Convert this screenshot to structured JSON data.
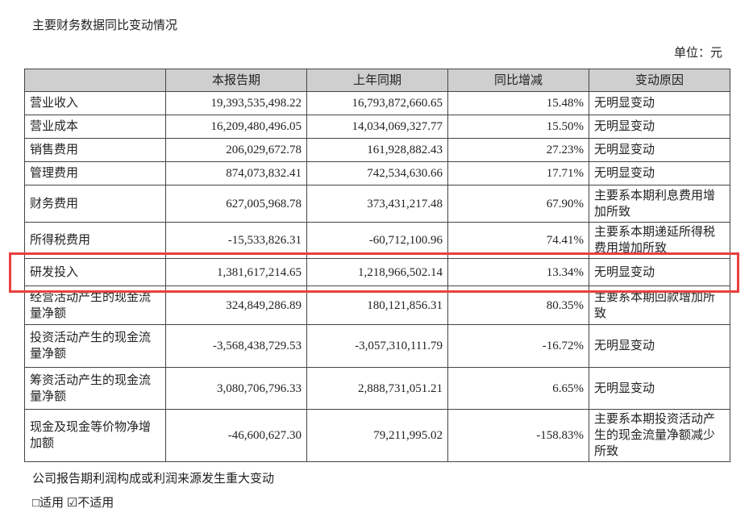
{
  "header": {
    "title": "主要财务数据同比变动情况",
    "unit": "单位：元"
  },
  "table": {
    "headers": [
      "本报告期",
      "上年同期",
      "同比增减",
      "变动原因"
    ],
    "rows": [
      [
        "营业收入",
        "19,393,535,498.22",
        "16,793,872,660.65",
        "15.48%",
        "无明显变动"
      ],
      [
        "营业成本",
        "16,209,480,496.05",
        "14,034,069,327.77",
        "15.50%",
        "无明显变动"
      ],
      [
        "销售费用",
        "206,029,672.78",
        "161,928,882.43",
        "27.23%",
        "无明显变动"
      ],
      [
        "管理费用",
        "874,073,832.41",
        "742,534,630.66",
        "17.71%",
        "无明显变动"
      ],
      [
        "财务费用",
        "627,005,968.78",
        "373,431,217.48",
        "67.90%",
        "主要系本期利息费用增加所致"
      ],
      [
        "所得税费用",
        "-15,533,826.31",
        "-60,712,100.96",
        "74.41%",
        "主要系本期递延所得税费用增加所致"
      ],
      [
        "研发投入",
        "1,381,617,214.65",
        "1,218,966,502.14",
        "13.34%",
        "无明显变动"
      ],
      [
        "经营活动产生的现金流量净额",
        "324,849,286.89",
        "180,121,856.31",
        "80.35%",
        "主要系本期回款增加所致"
      ],
      [
        "投资活动产生的现金流量净额",
        "-3,568,438,729.53",
        "-3,057,310,111.79",
        "-16.72%",
        "无明显变动"
      ],
      [
        "筹资活动产生的现金流量净额",
        "3,080,706,796.33",
        "2,888,731,051.21",
        "6.65%",
        "无明显变动"
      ],
      [
        "现金及现金等价物净增加额",
        "-46,600,627.30",
        "79,211,995.02",
        "-158.83%",
        "主要系本期投资活动产生的现金流量净额减少所致"
      ]
    ]
  },
  "footer": {
    "note": "公司报告期利润构成或利润来源发生重大变动",
    "options": "□适用 ☑不适用"
  }
}
